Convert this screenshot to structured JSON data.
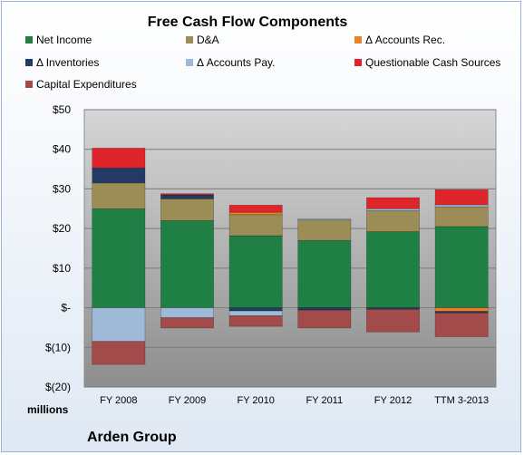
{
  "chart_data": {
    "type": "bar",
    "stacked": true,
    "title": "Free Cash Flow Components",
    "units_label": "millions",
    "company": "Arden Group",
    "categories": [
      "FY 2008",
      "FY 2009",
      "FY 2010",
      "FY 2011",
      "FY 2012",
      "TTM 3-2013"
    ],
    "ylim": [
      -20,
      50
    ],
    "yticks": [
      {
        "value": 50,
        "label": "$50"
      },
      {
        "value": 40,
        "label": "$40"
      },
      {
        "value": 30,
        "label": "$30"
      },
      {
        "value": 20,
        "label": "$20"
      },
      {
        "value": 10,
        "label": "$10"
      },
      {
        "value": 0,
        "label": "$-"
      },
      {
        "value": -10,
        "label": "$(10)"
      },
      {
        "value": -20,
        "label": "$(20)"
      }
    ],
    "grid": true,
    "legend_position": "top",
    "series": [
      {
        "name": "Net Income",
        "color": "#1f7f45",
        "values": [
          25.0,
          22.0,
          18.2,
          17.0,
          19.2,
          20.5
        ]
      },
      {
        "name": "D&A",
        "color": "#9c8c55",
        "values": [
          6.5,
          5.5,
          5.3,
          5.2,
          5.3,
          5.0
        ]
      },
      {
        "name": "Δ Accounts Rec.",
        "color": "#e8812a",
        "values": [
          0,
          0,
          0.6,
          0,
          0,
          -0.9
        ]
      },
      {
        "name": "Δ Inventories",
        "color": "#233b63",
        "values": [
          3.8,
          1.0,
          -0.8,
          -0.6,
          -0.4,
          -0.4
        ]
      },
      {
        "name": "Δ Accounts Pay.",
        "color": "#9fbad8",
        "values": [
          -8.5,
          -2.5,
          -1.2,
          0.3,
          0.5,
          0.5
        ]
      },
      {
        "name": "Questionable Cash Sources",
        "color": "#e0252a",
        "values": [
          5.0,
          0.3,
          1.8,
          0,
          2.8,
          3.8
        ]
      },
      {
        "name": "Capital Expenditures",
        "color": "#a34a4a",
        "values": [
          -5.8,
          -2.6,
          -2.7,
          -4.5,
          -5.7,
          -6.0
        ]
      }
    ]
  }
}
